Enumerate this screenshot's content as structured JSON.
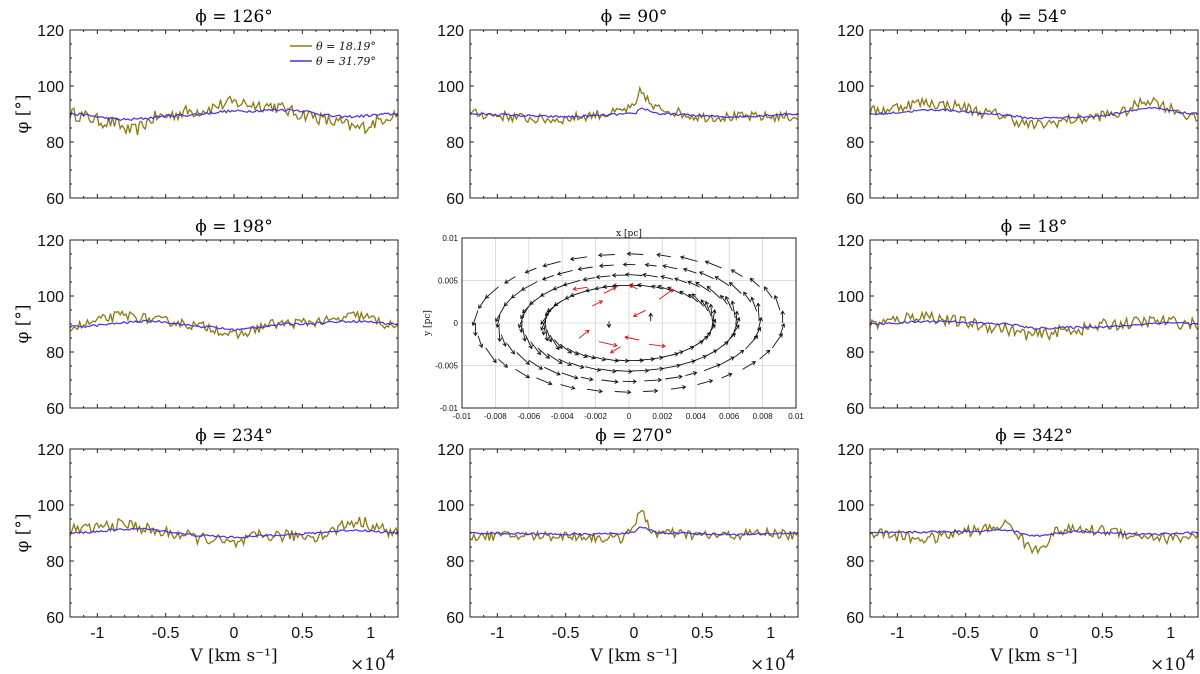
{
  "figure": {
    "xlabel": "V [km s⁻¹]",
    "x_multiplier": "×10",
    "x_multiplier_exp": "4",
    "ylabel": "φ [°]"
  },
  "chart_data": [
    {
      "type": "line",
      "title": "ϕ = 126°",
      "xlim": [
        -1.2,
        1.2
      ],
      "ylim": [
        60,
        120
      ],
      "yticks": [
        "60",
        "80",
        "100",
        "120"
      ],
      "xticks": [
        "-1",
        "-0.5",
        "0",
        "0.5",
        "1"
      ],
      "series": [
        {
          "name": "θ = 18.19°",
          "color": "#8b7a10",
          "kind": "noisy",
          "anchors": [
            [
              -1.2,
              90
            ],
            [
              -0.9,
              87
            ],
            [
              -0.75,
              84
            ],
            [
              -0.55,
              89
            ],
            [
              -0.3,
              91
            ],
            [
              0,
              94
            ],
            [
              0.25,
              93
            ],
            [
              0.5,
              90
            ],
            [
              0.75,
              87
            ],
            [
              0.9,
              85
            ],
            [
              1.2,
              90
            ]
          ],
          "amp": 2.4
        },
        {
          "name": "θ = 31.79°",
          "color": "#4b2ee0",
          "kind": "smooth",
          "anchors": [
            [
              -1.2,
              90
            ],
            [
              -0.8,
              88
            ],
            [
              -0.4,
              89.5
            ],
            [
              0,
              91
            ],
            [
              0.4,
              91.5
            ],
            [
              0.8,
              89
            ],
            [
              1.2,
              90
            ]
          ],
          "amp": 0.5
        }
      ],
      "legend": [
        "θ = 18.19°",
        "θ = 31.79°"
      ]
    },
    {
      "type": "line",
      "title": "ϕ = 90°",
      "xlim": [
        -1.2,
        1.2
      ],
      "ylim": [
        60,
        120
      ],
      "yticks": [
        "60",
        "80",
        "100",
        "120"
      ],
      "xticks": [
        "-1",
        "-0.5",
        "0",
        "0.5",
        "1"
      ],
      "series": [
        {
          "name": "θ = 18.19°",
          "color": "#8b7a10",
          "kind": "noisy",
          "anchors": [
            [
              -1.2,
              90
            ],
            [
              -0.6,
              88
            ],
            [
              -0.2,
              90
            ],
            [
              0,
              92
            ],
            [
              0.05,
              98
            ],
            [
              0.15,
              92
            ],
            [
              0.5,
              89
            ],
            [
              1.2,
              89
            ]
          ],
          "amp": 1.8
        },
        {
          "name": "θ = 31.79°",
          "color": "#4b2ee0",
          "kind": "smooth",
          "anchors": [
            [
              -1.2,
              90
            ],
            [
              -0.5,
              89
            ],
            [
              0,
              90
            ],
            [
              0.05,
              92
            ],
            [
              0.2,
              90
            ],
            [
              0.7,
              89
            ],
            [
              1.2,
              90
            ]
          ],
          "amp": 0.4
        }
      ]
    },
    {
      "type": "line",
      "title": "ϕ = 54°",
      "xlim": [
        -1.2,
        1.2
      ],
      "ylim": [
        60,
        120
      ],
      "yticks": [
        "60",
        "80",
        "100",
        "120"
      ],
      "xticks": [
        "-1",
        "-0.5",
        "0",
        "0.5",
        "1"
      ],
      "series": [
        {
          "name": "θ = 18.19°",
          "color": "#8b7a10",
          "kind": "noisy",
          "anchors": [
            [
              -1.2,
              91
            ],
            [
              -0.8,
              94
            ],
            [
              -0.6,
              93
            ],
            [
              -0.3,
              90
            ],
            [
              0,
              86
            ],
            [
              0.3,
              88
            ],
            [
              0.6,
              90
            ],
            [
              0.85,
              95
            ],
            [
              1.0,
              92
            ],
            [
              1.2,
              88
            ]
          ],
          "amp": 2.0
        },
        {
          "name": "θ = 31.79°",
          "color": "#4b2ee0",
          "kind": "smooth",
          "anchors": [
            [
              -1.2,
              90
            ],
            [
              -0.7,
              91.5
            ],
            [
              -0.3,
              90
            ],
            [
              0,
              88.5
            ],
            [
              0.4,
              89
            ],
            [
              0.85,
              92
            ],
            [
              1.2,
              90
            ]
          ],
          "amp": 0.4
        }
      ]
    },
    {
      "type": "line",
      "title": "ϕ = 198°",
      "xlim": [
        -1.2,
        1.2
      ],
      "ylim": [
        60,
        120
      ],
      "yticks": [
        "60",
        "80",
        "100",
        "120"
      ],
      "xticks": [
        "-1",
        "-0.5",
        "0",
        "0.5",
        "1"
      ],
      "series": [
        {
          "name": "θ = 18.19°",
          "color": "#8b7a10",
          "kind": "noisy",
          "anchors": [
            [
              -1.2,
              89
            ],
            [
              -0.8,
              93
            ],
            [
              -0.5,
              91
            ],
            [
              -0.2,
              89
            ],
            [
              0,
              86
            ],
            [
              0.3,
              90
            ],
            [
              0.7,
              91
            ],
            [
              0.9,
              93
            ],
            [
              1.2,
              89
            ]
          ],
          "amp": 1.8
        },
        {
          "name": "θ = 31.79°",
          "color": "#4b2ee0",
          "kind": "smooth",
          "anchors": [
            [
              -1.2,
              89
            ],
            [
              -0.6,
              91
            ],
            [
              -0.2,
              89
            ],
            [
              0,
              88
            ],
            [
              0.4,
              90
            ],
            [
              0.9,
              91
            ],
            [
              1.2,
              90
            ]
          ],
          "amp": 0.4
        }
      ]
    },
    {
      "type": "line",
      "title": "ϕ = 18°",
      "xlim": [
        -1.2,
        1.2
      ],
      "ylim": [
        60,
        120
      ],
      "yticks": [
        "60",
        "80",
        "100",
        "120"
      ],
      "xticks": [
        "-1",
        "-0.5",
        "0",
        "0.5",
        "1"
      ],
      "series": [
        {
          "name": "θ = 18.19°",
          "color": "#8b7a10",
          "kind": "noisy",
          "anchors": [
            [
              -1.2,
              90
            ],
            [
              -0.8,
              93
            ],
            [
              -0.6,
              91
            ],
            [
              -0.3,
              89
            ],
            [
              0,
              86
            ],
            [
              0.3,
              88
            ],
            [
              0.6,
              90
            ],
            [
              0.9,
              91
            ],
            [
              1.2,
              90
            ]
          ],
          "amp": 2.2
        },
        {
          "name": "θ = 31.79°",
          "color": "#4b2ee0",
          "kind": "smooth",
          "anchors": [
            [
              -1.2,
              90
            ],
            [
              -0.7,
              91
            ],
            [
              -0.2,
              90
            ],
            [
              0,
              88.5
            ],
            [
              0.5,
              89
            ],
            [
              1.0,
              90.5
            ],
            [
              1.2,
              90
            ]
          ],
          "amp": 0.4
        }
      ]
    },
    {
      "type": "line",
      "title": "ϕ = 234°",
      "xlim": [
        -1.2,
        1.2
      ],
      "ylim": [
        60,
        120
      ],
      "yticks": [
        "60",
        "80",
        "100",
        "120"
      ],
      "xticks": [
        "-1",
        "-0.5",
        "0",
        "0.5",
        "1"
      ],
      "series": [
        {
          "name": "θ = 18.19°",
          "color": "#8b7a10",
          "kind": "noisy",
          "anchors": [
            [
              -1.2,
              91
            ],
            [
              -0.8,
              93
            ],
            [
              -0.5,
              90
            ],
            [
              -0.2,
              88
            ],
            [
              0,
              86
            ],
            [
              0.2,
              89
            ],
            [
              0.6,
              89
            ],
            [
              0.9,
              94
            ],
            [
              1.2,
              90
            ]
          ],
          "amp": 2.2
        },
        {
          "name": "θ = 31.79°",
          "color": "#4b2ee0",
          "kind": "smooth",
          "anchors": [
            [
              -1.2,
              90
            ],
            [
              -0.7,
              91.5
            ],
            [
              -0.2,
              89
            ],
            [
              0,
              88.5
            ],
            [
              0.4,
              89.5
            ],
            [
              0.9,
              91
            ],
            [
              1.2,
              90
            ]
          ],
          "amp": 0.4
        }
      ]
    },
    {
      "type": "line",
      "title": "ϕ = 270°",
      "xlim": [
        -1.2,
        1.2
      ],
      "ylim": [
        60,
        120
      ],
      "yticks": [
        "60",
        "80",
        "100",
        "120"
      ],
      "xticks": [
        "-1",
        "-0.5",
        "0",
        "0.5",
        "1"
      ],
      "series": [
        {
          "name": "θ = 18.19°",
          "color": "#8b7a10",
          "kind": "noisy",
          "anchors": [
            [
              -1.2,
              89
            ],
            [
              -0.5,
              89
            ],
            [
              -0.1,
              88
            ],
            [
              0,
              93
            ],
            [
              0.05,
              97
            ],
            [
              0.15,
              90
            ],
            [
              0.6,
              89
            ],
            [
              1.0,
              90
            ],
            [
              1.2,
              89
            ]
          ],
          "amp": 1.8
        },
        {
          "name": "θ = 31.79°",
          "color": "#4b2ee0",
          "kind": "smooth",
          "anchors": [
            [
              -1.2,
              90
            ],
            [
              -0.4,
              89.5
            ],
            [
              0,
              90
            ],
            [
              0.05,
              92
            ],
            [
              0.2,
              90
            ],
            [
              0.8,
              89.5
            ],
            [
              1.2,
              90
            ]
          ],
          "amp": 0.4
        }
      ]
    },
    {
      "type": "line",
      "title": "ϕ = 342°",
      "xlim": [
        -1.2,
        1.2
      ],
      "ylim": [
        60,
        120
      ],
      "yticks": [
        "60",
        "80",
        "100",
        "120"
      ],
      "xticks": [
        "-1",
        "-0.5",
        "0",
        "0.5",
        "1"
      ],
      "series": [
        {
          "name": "θ = 18.19°",
          "color": "#8b7a10",
          "kind": "noisy",
          "anchors": [
            [
              -1.2,
              90
            ],
            [
              -0.8,
              88
            ],
            [
              -0.4,
              91
            ],
            [
              -0.2,
              93
            ],
            [
              0,
              84
            ],
            [
              0.2,
              91
            ],
            [
              0.5,
              91
            ],
            [
              0.8,
              89
            ],
            [
              1.0,
              88
            ],
            [
              1.2,
              89
            ]
          ],
          "amp": 2.0
        },
        {
          "name": "θ = 31.79°",
          "color": "#4b2ee0",
          "kind": "smooth",
          "anchors": [
            [
              -1.2,
              90
            ],
            [
              -0.6,
              90.5
            ],
            [
              -0.2,
              91
            ],
            [
              0,
              89
            ],
            [
              0.3,
              90.5
            ],
            [
              0.8,
              89.5
            ],
            [
              1.2,
              90
            ]
          ],
          "amp": 0.4
        }
      ]
    },
    {
      "type": "scatter",
      "subtype": "vector-field",
      "title": "x [pc]",
      "xlabel": "x [pc]",
      "ylabel": "y [pc]",
      "xlim": [
        -0.01,
        0.01
      ],
      "ylim": [
        -0.01,
        0.01
      ],
      "xticks": [
        "-0.01",
        "-0.008",
        "-0.006",
        "-0.004",
        "-0.002",
        "0",
        "0.002",
        "0.004",
        "0.006",
        "0.008",
        "0.01"
      ],
      "yticks": [
        "-0.01",
        "-0.005",
        "0",
        "0.005",
        "0.01"
      ],
      "series": [
        {
          "name": "outer vectors",
          "color": "#111111",
          "rings": [
            0.0092,
            0.0078,
            0.0064,
            0.005
          ],
          "aspect": 0.55
        },
        {
          "name": "inner vectors",
          "color": "#e01010",
          "rings": [
            0.0032
          ],
          "aspect": 0.55
        }
      ]
    }
  ]
}
